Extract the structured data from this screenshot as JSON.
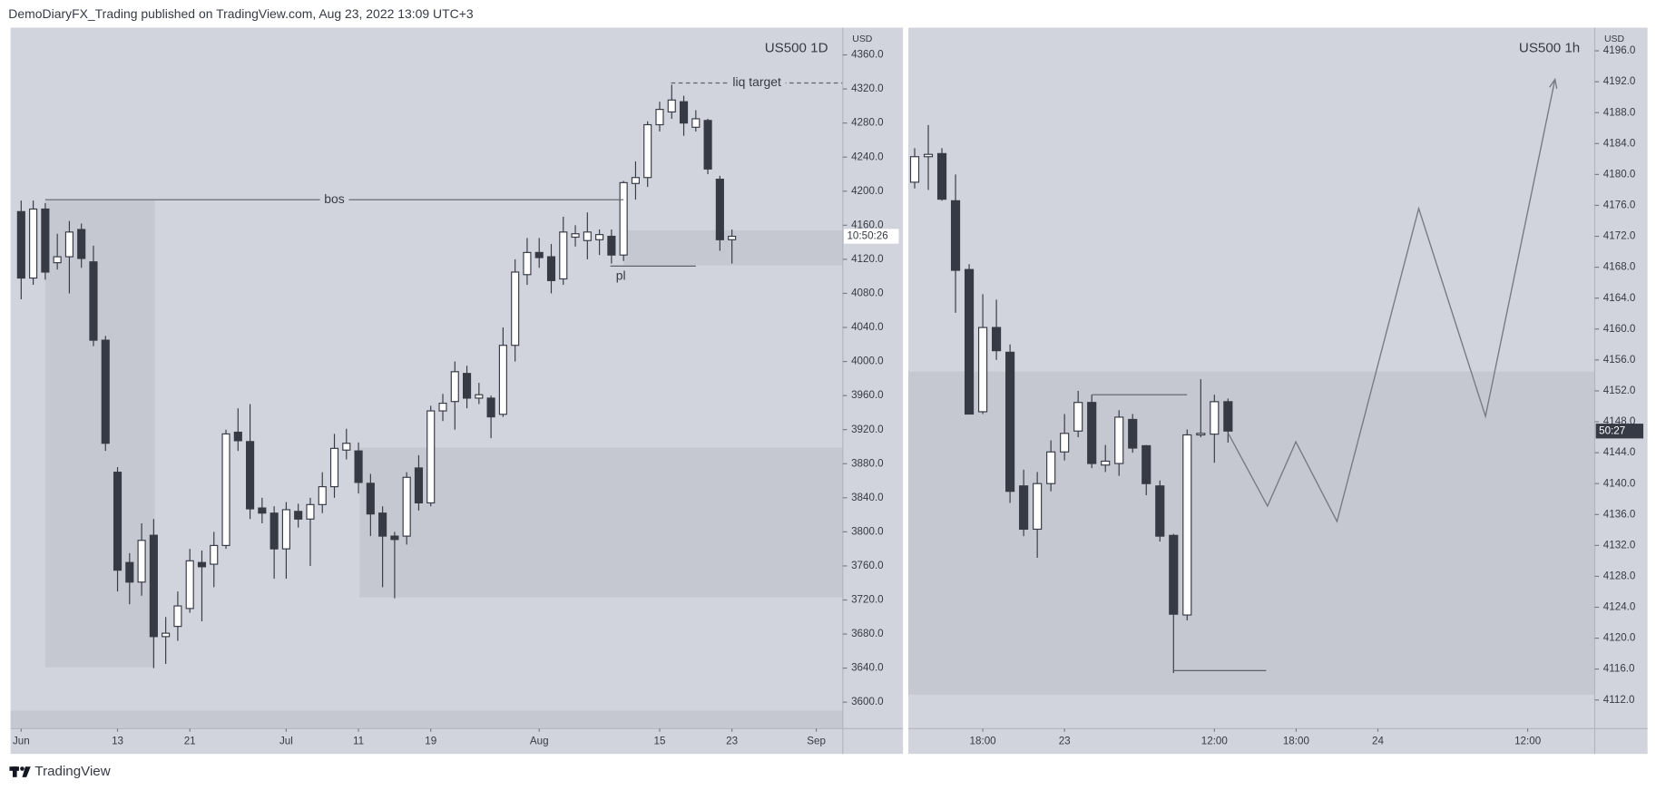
{
  "header": {
    "title": "DemoDiaryFX_Trading published on TradingView.com, Aug 23, 2022 13:09 UTC+3"
  },
  "footer": {
    "brand": "TradingView"
  },
  "chart_data": [
    {
      "type": "candlestick",
      "title": "US500 1D",
      "y_axis_label": "USD",
      "up_color": "#ffffff",
      "down_color": "#363a45",
      "border_color": "#363a45",
      "background": "#d1d4dc",
      "zone_color": "#c3c5ce",
      "countdown_label": "10:50:26",
      "countdown_bg": "#ffffff",
      "countdown_color": "#363a45",
      "xlim": [
        -0.88,
        68.2
      ],
      "ylim": [
        3569,
        4392
      ],
      "xticks": [
        {
          "value": 0,
          "label": "Jun"
        },
        {
          "value": 8,
          "label": "13"
        },
        {
          "value": 14,
          "label": "21"
        },
        {
          "value": 22,
          "label": "Jul"
        },
        {
          "value": 28,
          "label": "11"
        },
        {
          "value": 34,
          "label": "19"
        },
        {
          "value": 43,
          "label": "Aug"
        },
        {
          "value": 53,
          "label": "15"
        },
        {
          "value": 59,
          "label": "23"
        },
        {
          "value": 66,
          "label": "Sep"
        }
      ],
      "yticks": [
        {
          "value": 3600,
          "label": "3600.0"
        },
        {
          "value": 3640,
          "label": "3640.0"
        },
        {
          "value": 3680,
          "label": "3680.0"
        },
        {
          "value": 3720,
          "label": "3720.0"
        },
        {
          "value": 3760,
          "label": "3760.0"
        },
        {
          "value": 3800,
          "label": "3800.0"
        },
        {
          "value": 3840,
          "label": "3840.0"
        },
        {
          "value": 3880,
          "label": "3880.0"
        },
        {
          "value": 3920,
          "label": "3920.0"
        },
        {
          "value": 3960,
          "label": "3960.0"
        },
        {
          "value": 4000,
          "label": "4000.0"
        },
        {
          "value": 4040,
          "label": "4040.0"
        },
        {
          "value": 4080,
          "label": "4080.0"
        },
        {
          "value": 4120,
          "label": "4120.0"
        },
        {
          "value": 4160,
          "label": "4160.0"
        },
        {
          "value": 4200,
          "label": "4200.0"
        },
        {
          "value": 4240,
          "label": "4240.0"
        },
        {
          "value": 4280,
          "label": "4280.0"
        },
        {
          "value": 4320,
          "label": "4320.0"
        },
        {
          "value": 4360,
          "label": "4360.0"
        }
      ],
      "open": [
        4176,
        4098,
        4179,
        4116,
        4123,
        4155,
        4117,
        4025,
        3870,
        3764,
        3741,
        3796,
        3677,
        3689,
        3710,
        3764,
        3762,
        3784,
        3917,
        3906,
        3828,
        3822,
        3780,
        3824,
        3815,
        3832,
        3853,
        3896,
        3895,
        3857,
        3822,
        3795,
        3795,
        3875,
        3834,
        3942,
        3953,
        3986,
        3957,
        3957,
        3938,
        4019,
        4102,
        4128,
        4123,
        4097,
        4146,
        4142,
        4143,
        4147,
        4125,
        4209,
        4216,
        4278,
        4293,
        4305,
        4275,
        4283,
        4214,
        4143
      ],
      "high": [
        4189,
        4189,
        4186,
        4150,
        4165,
        4162,
        4136,
        4030,
        3876,
        3775,
        3810,
        3815,
        3700,
        3730,
        3780,
        3778,
        3800,
        3920,
        3945,
        3950,
        3840,
        3830,
        3835,
        3833,
        3840,
        3870,
        3915,
        3921,
        3905,
        3868,
        3830,
        3800,
        3870,
        3890,
        3948,
        3962,
        4000,
        3995,
        3975,
        3960,
        4040,
        4120,
        4145,
        4145,
        4138,
        4170,
        4160,
        4175,
        4155,
        4155,
        4212,
        4235,
        4282,
        4305,
        4325,
        4312,
        4295,
        4285,
        4218,
        4155
      ],
      "low": [
        4073,
        4090,
        4096,
        4108,
        4080,
        4110,
        4018,
        3895,
        3730,
        3715,
        3725,
        3640,
        3645,
        3672,
        3705,
        3695,
        3735,
        3780,
        3895,
        3815,
        3810,
        3745,
        3745,
        3805,
        3760,
        3822,
        3840,
        3885,
        3845,
        3795,
        3735,
        3722,
        3785,
        3825,
        3830,
        3930,
        3920,
        3945,
        3950,
        3910,
        3935,
        4000,
        4090,
        4110,
        4080,
        4090,
        4135,
        4120,
        4125,
        4115,
        4118,
        4190,
        4205,
        4270,
        4285,
        4265,
        4270,
        4220,
        4130,
        4115
      ],
      "close": [
        4098,
        4179,
        4105,
        4123,
        4152,
        4121,
        4025,
        3904,
        3755,
        3741,
        3790,
        3677,
        3681,
        3713,
        3766,
        3759,
        3784,
        3915,
        3907,
        3827,
        3822,
        3780,
        3826,
        3815,
        3832,
        3853,
        3898,
        3904,
        3858,
        3821,
        3795,
        3791,
        3864,
        3834,
        3942,
        3951,
        3988,
        3957,
        3961,
        3935,
        4019,
        4105,
        4128,
        4122,
        4095,
        4152,
        4150,
        4152,
        4149,
        4125,
        4210,
        4216,
        4278,
        4296,
        4307,
        4280,
        4285,
        4226,
        4143,
        4147
      ],
      "zones": [
        {
          "x": [
            2,
            11.1
          ],
          "y": [
            3641,
            4189
          ]
        },
        {
          "x": [
            28.1,
            68.2
          ],
          "y": [
            3723,
            3899
          ]
        },
        {
          "x": [
            50,
            68.2
          ],
          "y": [
            4113,
            4154
          ]
        },
        {
          "x": [
            -0.88,
            68.2
          ],
          "y": [
            3569,
            3590
          ]
        }
      ],
      "annotations": [
        {
          "text": "bos",
          "y": 4190,
          "x": [
            2,
            50
          ],
          "label_at": "middle"
        },
        {
          "text": "liq target",
          "y": 4327,
          "x": [
            53.95,
            68.2
          ],
          "label_at": "middle",
          "dashed": true
        },
        {
          "text": "pl",
          "y": 4112,
          "x": [
            48.9,
            56
          ],
          "label_at": "below"
        }
      ]
    },
    {
      "type": "candlestick",
      "title": "US500 1h",
      "y_axis_label": "USD",
      "up_color": "#ffffff",
      "down_color": "#363a45",
      "border_color": "#363a45",
      "background": "#d1d4dc",
      "zone_color": "#c3c5ce",
      "countdown_label": "50:27",
      "countdown_bg": "#363a45",
      "countdown_color": "#ffffff",
      "xlim": [
        -0.47,
        49.92
      ],
      "ylim": [
        4108.3,
        4199
      ],
      "xticks": [
        {
          "value": 5,
          "label": "18:00"
        },
        {
          "value": 11,
          "label": "23"
        },
        {
          "value": 22,
          "label": "12:00"
        },
        {
          "value": 28,
          "label": "18:00"
        },
        {
          "value": 34,
          "label": "24"
        },
        {
          "value": 45,
          "label": "12:00"
        }
      ],
      "yticks": [
        {
          "value": 4112,
          "label": "4112.0"
        },
        {
          "value": 4116,
          "label": "4116.0"
        },
        {
          "value": 4120,
          "label": "4120.0"
        },
        {
          "value": 4124,
          "label": "4124.0"
        },
        {
          "value": 4128,
          "label": "4128.0"
        },
        {
          "value": 4132,
          "label": "4132.0"
        },
        {
          "value": 4136,
          "label": "4136.0"
        },
        {
          "value": 4140,
          "label": "4140.0"
        },
        {
          "value": 4144,
          "label": "4144.0"
        },
        {
          "value": 4148,
          "label": "4148.0"
        },
        {
          "value": 4152,
          "label": "4152.0"
        },
        {
          "value": 4156,
          "label": "4156.0"
        },
        {
          "value": 4160,
          "label": "4160.0"
        },
        {
          "value": 4164,
          "label": "4164.0"
        },
        {
          "value": 4168,
          "label": "4168.0"
        },
        {
          "value": 4172,
          "label": "4172.0"
        },
        {
          "value": 4176,
          "label": "4176.0"
        },
        {
          "value": 4180,
          "label": "4180.0"
        },
        {
          "value": 4184,
          "label": "4184.0"
        },
        {
          "value": 4188,
          "label": "4188.0"
        },
        {
          "value": 4192,
          "label": "4192.0"
        },
        {
          "value": 4196,
          "label": "4196.0"
        }
      ],
      "open": [
        4179.0,
        4182.3,
        4182.7,
        4176.6,
        4167.7,
        4149.3,
        4160.2,
        4157.0,
        4139.7,
        4134.1,
        4140.0,
        4144.1,
        4146.8,
        4150.5,
        4142.4,
        4142.6,
        4148.3,
        4144.9,
        4139.7,
        4133.3,
        4123.0,
        4146.3,
        4146.4,
        4150.6
      ],
      "high": [
        4183.4,
        4186.4,
        4183.4,
        4180.0,
        4168.4,
        4164.5,
        4163.8,
        4158.0,
        4141.8,
        4141.5,
        4145.6,
        4149.0,
        4152.0,
        4151.5,
        4145.0,
        4149.5,
        4149.0,
        4145.0,
        4140.4,
        4133.5,
        4147.0,
        4153.5,
        4151.5,
        4151.0
      ],
      "low": [
        4178.2,
        4178.0,
        4176.6,
        4162.1,
        4149.0,
        4149.0,
        4156.0,
        4137.5,
        4133.2,
        4130.4,
        4139.0,
        4143.0,
        4146.0,
        4142.0,
        4141.5,
        4141.0,
        4144.0,
        4138.5,
        4132.5,
        4115.5,
        4122.3,
        4146.0,
        4142.7,
        4145.3
      ],
      "close": [
        4182.3,
        4182.6,
        4176.8,
        4167.6,
        4149.0,
        4160.2,
        4157.2,
        4139.0,
        4134.1,
        4140.0,
        4144.1,
        4146.5,
        4150.5,
        4142.6,
        4142.9,
        4148.6,
        4144.6,
        4140.0,
        4133.2,
        4123.1,
        4146.3,
        4146.5,
        4150.6,
        4146.8
      ],
      "zones": [
        {
          "x": [
            -0.47,
            49.92
          ],
          "y": [
            4112.7,
            4154.5
          ]
        }
      ],
      "annotations": [
        {
          "y": 4151.5,
          "x": [
            13,
            20
          ]
        },
        {
          "y": 4115.8,
          "x": [
            19,
            25.8
          ]
        }
      ],
      "projection": {
        "x": [
          23.02,
          25.9,
          27.98,
          31.0,
          37.0,
          41.9,
          47.0
        ],
        "y": [
          4146.5,
          4137.1,
          4145.4,
          4135.1,
          4175.6,
          4148.7,
          4192.3
        ]
      }
    }
  ]
}
